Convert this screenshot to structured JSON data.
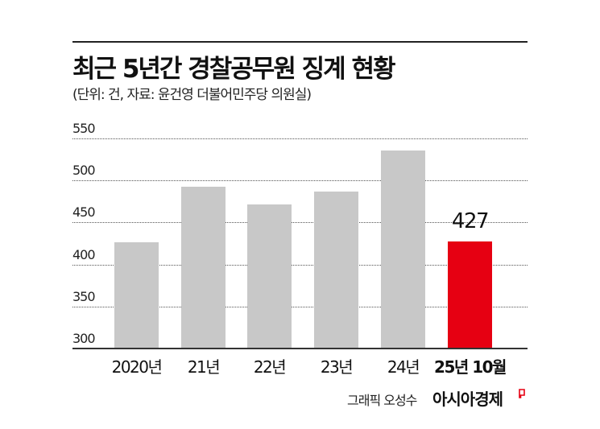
{
  "header": {
    "title": "최근 5년간 경찰공무원 징계 현황",
    "subtitle": "(단위: 건, 자료: 윤건영 더불어민주당 의원실)"
  },
  "footer": {
    "credit": "그래픽 오성수",
    "brand": "아시아경제",
    "brand_mark_icon": "red-flag-mark-icon"
  },
  "colors": {
    "bar": "#c8c8c8",
    "highlight": "#e60012",
    "text": "#111111"
  },
  "chart_data": {
    "type": "bar",
    "title": "최근 5년간 경찰공무원 징계 현황",
    "subtitle": "(단위: 건, 자료: 윤건영 더불어민주당 의원실)",
    "xlabel": "",
    "ylabel": "",
    "unit": "건",
    "categories": [
      "2020년",
      "21년",
      "22년",
      "23년",
      "24년",
      "25년 10월"
    ],
    "values": [
      426,
      493,
      471,
      487,
      536,
      427
    ],
    "highlight_index": 5,
    "data_labels": [
      {
        "index": 5,
        "text": "427"
      }
    ],
    "ylim": [
      300,
      550
    ],
    "yticks": [
      300,
      350,
      400,
      450,
      500,
      550
    ],
    "grid": true,
    "grid_style": "dotted",
    "legend": null
  }
}
